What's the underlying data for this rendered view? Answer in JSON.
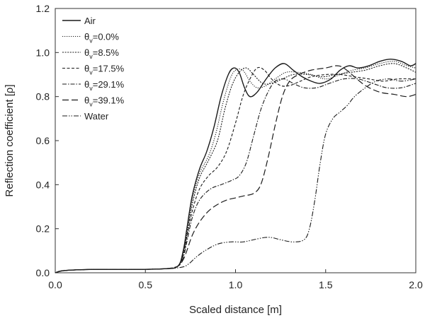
{
  "chart_data": {
    "type": "line",
    "title": "",
    "xlabel": "Scaled distance [m]",
    "ylabel": "Reflection coefficient [ρ]",
    "xlim": [
      0.0,
      2.0
    ],
    "ylim": [
      0.0,
      1.2
    ],
    "xticks": [
      "0.0",
      "0.5",
      "1.0",
      "1.5",
      "2.0"
    ],
    "yticks": [
      "0.0",
      "0.2",
      "0.4",
      "0.6",
      "0.8",
      "1.0",
      "1.2"
    ],
    "grid": false,
    "legend_position": "top-left",
    "series": [
      {
        "name": "Air",
        "legend": {
          "main": "Air",
          "sub": "",
          "rest": ""
        },
        "dash": "",
        "width": 1.4,
        "points": [
          [
            0,
            0.0
          ],
          [
            0.05,
            0.01
          ],
          [
            0.2,
            0.015
          ],
          [
            0.4,
            0.015
          ],
          [
            0.6,
            0.018
          ],
          [
            0.68,
            0.03
          ],
          [
            0.71,
            0.1
          ],
          [
            0.73,
            0.2
          ],
          [
            0.76,
            0.35
          ],
          [
            0.8,
            0.47
          ],
          [
            0.84,
            0.55
          ],
          [
            0.88,
            0.66
          ],
          [
            0.92,
            0.8
          ],
          [
            0.96,
            0.9
          ],
          [
            0.99,
            0.93
          ],
          [
            1.02,
            0.91
          ],
          [
            1.05,
            0.84
          ],
          [
            1.08,
            0.8
          ],
          [
            1.12,
            0.82
          ],
          [
            1.17,
            0.88
          ],
          [
            1.22,
            0.93
          ],
          [
            1.27,
            0.95
          ],
          [
            1.32,
            0.92
          ],
          [
            1.37,
            0.89
          ],
          [
            1.42,
            0.87
          ],
          [
            1.47,
            0.86
          ],
          [
            1.53,
            0.88
          ],
          [
            1.58,
            0.92
          ],
          [
            1.63,
            0.94
          ],
          [
            1.68,
            0.93
          ],
          [
            1.74,
            0.94
          ],
          [
            1.8,
            0.96
          ],
          [
            1.86,
            0.97
          ],
          [
            1.92,
            0.96
          ],
          [
            1.97,
            0.94
          ],
          [
            2.0,
            0.95
          ]
        ]
      },
      {
        "name": "θv=0.0%",
        "legend": {
          "main": "θ",
          "sub": "v",
          "rest": "=0.0%"
        },
        "dash": "1.2,1.8",
        "width": 1.1,
        "points": [
          [
            0,
            0.0
          ],
          [
            0.05,
            0.01
          ],
          [
            0.2,
            0.015
          ],
          [
            0.4,
            0.015
          ],
          [
            0.6,
            0.018
          ],
          [
            0.68,
            0.03
          ],
          [
            0.71,
            0.09
          ],
          [
            0.73,
            0.18
          ],
          [
            0.76,
            0.33
          ],
          [
            0.8,
            0.45
          ],
          [
            0.85,
            0.53
          ],
          [
            0.89,
            0.63
          ],
          [
            0.93,
            0.77
          ],
          [
            0.97,
            0.88
          ],
          [
            1.0,
            0.92
          ],
          [
            1.04,
            0.92
          ],
          [
            1.08,
            0.87
          ],
          [
            1.12,
            0.84
          ],
          [
            1.17,
            0.85
          ],
          [
            1.22,
            0.88
          ],
          [
            1.28,
            0.91
          ],
          [
            1.35,
            0.91
          ],
          [
            1.42,
            0.9
          ],
          [
            1.5,
            0.88
          ],
          [
            1.58,
            0.9
          ],
          [
            1.65,
            0.92
          ],
          [
            1.72,
            0.93
          ],
          [
            1.8,
            0.95
          ],
          [
            1.88,
            0.96
          ],
          [
            1.95,
            0.94
          ],
          [
            2.0,
            0.93
          ]
        ]
      },
      {
        "name": "θv=8.5%",
        "legend": {
          "main": "θ",
          "sub": "v",
          "rest": "=8.5%"
        },
        "dash": "2,1.6",
        "width": 1.1,
        "points": [
          [
            0,
            0.0
          ],
          [
            0.05,
            0.01
          ],
          [
            0.2,
            0.015
          ],
          [
            0.4,
            0.015
          ],
          [
            0.6,
            0.018
          ],
          [
            0.68,
            0.03
          ],
          [
            0.71,
            0.09
          ],
          [
            0.73,
            0.17
          ],
          [
            0.76,
            0.31
          ],
          [
            0.8,
            0.43
          ],
          [
            0.85,
            0.51
          ],
          [
            0.9,
            0.6
          ],
          [
            0.94,
            0.74
          ],
          [
            0.98,
            0.85
          ],
          [
            1.02,
            0.91
          ],
          [
            1.06,
            0.93
          ],
          [
            1.1,
            0.9
          ],
          [
            1.15,
            0.86
          ],
          [
            1.2,
            0.86
          ],
          [
            1.26,
            0.88
          ],
          [
            1.32,
            0.9
          ],
          [
            1.4,
            0.9
          ],
          [
            1.48,
            0.89
          ],
          [
            1.56,
            0.9
          ],
          [
            1.64,
            0.91
          ],
          [
            1.72,
            0.92
          ],
          [
            1.8,
            0.94
          ],
          [
            1.88,
            0.95
          ],
          [
            1.95,
            0.93
          ],
          [
            2.0,
            0.91
          ]
        ]
      },
      {
        "name": "θv=17.5%",
        "legend": {
          "main": "θ",
          "sub": "v",
          "rest": "=17.5%"
        },
        "dash": "4,2.5",
        "width": 1.1,
        "points": [
          [
            0,
            0.0
          ],
          [
            0.05,
            0.01
          ],
          [
            0.2,
            0.015
          ],
          [
            0.4,
            0.015
          ],
          [
            0.6,
            0.018
          ],
          [
            0.68,
            0.03
          ],
          [
            0.71,
            0.08
          ],
          [
            0.73,
            0.16
          ],
          [
            0.76,
            0.28
          ],
          [
            0.8,
            0.38
          ],
          [
            0.85,
            0.44
          ],
          [
            0.9,
            0.48
          ],
          [
            0.95,
            0.55
          ],
          [
            1.0,
            0.68
          ],
          [
            1.04,
            0.8
          ],
          [
            1.08,
            0.88
          ],
          [
            1.12,
            0.93
          ],
          [
            1.16,
            0.92
          ],
          [
            1.2,
            0.88
          ],
          [
            1.25,
            0.85
          ],
          [
            1.3,
            0.85
          ],
          [
            1.36,
            0.87
          ],
          [
            1.42,
            0.89
          ],
          [
            1.5,
            0.9
          ],
          [
            1.58,
            0.9
          ],
          [
            1.66,
            0.89
          ],
          [
            1.74,
            0.88
          ],
          [
            1.82,
            0.87
          ],
          [
            1.9,
            0.88
          ],
          [
            2.0,
            0.88
          ]
        ]
      },
      {
        "name": "θv=29.1%",
        "legend": {
          "main": "θ",
          "sub": "v",
          "rest": "=29.1%"
        },
        "dash": "6,2,1.5,2",
        "width": 1.1,
        "points": [
          [
            0,
            0.0
          ],
          [
            0.05,
            0.01
          ],
          [
            0.2,
            0.015
          ],
          [
            0.4,
            0.015
          ],
          [
            0.6,
            0.018
          ],
          [
            0.68,
            0.03
          ],
          [
            0.71,
            0.07
          ],
          [
            0.73,
            0.14
          ],
          [
            0.76,
            0.25
          ],
          [
            0.8,
            0.33
          ],
          [
            0.86,
            0.38
          ],
          [
            0.92,
            0.4
          ],
          [
            0.98,
            0.42
          ],
          [
            1.02,
            0.44
          ],
          [
            1.06,
            0.5
          ],
          [
            1.1,
            0.62
          ],
          [
            1.14,
            0.74
          ],
          [
            1.18,
            0.82
          ],
          [
            1.22,
            0.87
          ],
          [
            1.27,
            0.88
          ],
          [
            1.32,
            0.86
          ],
          [
            1.38,
            0.84
          ],
          [
            1.45,
            0.84
          ],
          [
            1.52,
            0.86
          ],
          [
            1.6,
            0.88
          ],
          [
            1.68,
            0.88
          ],
          [
            1.76,
            0.86
          ],
          [
            1.84,
            0.84
          ],
          [
            1.92,
            0.84
          ],
          [
            2.0,
            0.86
          ]
        ]
      },
      {
        "name": "θv=39.1%",
        "legend": {
          "main": "θ",
          "sub": "v",
          "rest": "=39.1%"
        },
        "dash": "9,4",
        "width": 1.2,
        "points": [
          [
            0,
            0.0
          ],
          [
            0.05,
            0.01
          ],
          [
            0.2,
            0.015
          ],
          [
            0.4,
            0.015
          ],
          [
            0.6,
            0.018
          ],
          [
            0.68,
            0.03
          ],
          [
            0.71,
            0.06
          ],
          [
            0.73,
            0.1
          ],
          [
            0.76,
            0.17
          ],
          [
            0.8,
            0.23
          ],
          [
            0.85,
            0.28
          ],
          [
            0.9,
            0.31
          ],
          [
            0.95,
            0.33
          ],
          [
            1.0,
            0.34
          ],
          [
            1.05,
            0.35
          ],
          [
            1.1,
            0.36
          ],
          [
            1.14,
            0.4
          ],
          [
            1.18,
            0.52
          ],
          [
            1.22,
            0.67
          ],
          [
            1.26,
            0.8
          ],
          [
            1.3,
            0.87
          ],
          [
            1.35,
            0.9
          ],
          [
            1.42,
            0.92
          ],
          [
            1.5,
            0.93
          ],
          [
            1.56,
            0.94
          ],
          [
            1.6,
            0.93
          ],
          [
            1.66,
            0.89
          ],
          [
            1.72,
            0.85
          ],
          [
            1.8,
            0.82
          ],
          [
            1.88,
            0.81
          ],
          [
            1.95,
            0.8
          ],
          [
            2.0,
            0.81
          ]
        ]
      },
      {
        "name": "Water",
        "legend": {
          "main": "Water",
          "sub": "",
          "rest": ""
        },
        "dash": "7,2,1.5,2,1.5,2",
        "width": 1.1,
        "points": [
          [
            0,
            0.0
          ],
          [
            0.05,
            0.01
          ],
          [
            0.2,
            0.015
          ],
          [
            0.4,
            0.015
          ],
          [
            0.6,
            0.018
          ],
          [
            0.7,
            0.025
          ],
          [
            0.74,
            0.04
          ],
          [
            0.78,
            0.07
          ],
          [
            0.83,
            0.1
          ],
          [
            0.9,
            0.13
          ],
          [
            0.97,
            0.14
          ],
          [
            1.04,
            0.14
          ],
          [
            1.1,
            0.15
          ],
          [
            1.16,
            0.16
          ],
          [
            1.2,
            0.16
          ],
          [
            1.25,
            0.15
          ],
          [
            1.32,
            0.14
          ],
          [
            1.38,
            0.15
          ],
          [
            1.41,
            0.2
          ],
          [
            1.44,
            0.33
          ],
          [
            1.47,
            0.5
          ],
          [
            1.5,
            0.63
          ],
          [
            1.54,
            0.7
          ],
          [
            1.58,
            0.73
          ],
          [
            1.62,
            0.76
          ],
          [
            1.66,
            0.8
          ],
          [
            1.72,
            0.84
          ],
          [
            1.78,
            0.87
          ],
          [
            1.85,
            0.88
          ],
          [
            1.92,
            0.87
          ],
          [
            2.0,
            0.88
          ]
        ]
      }
    ]
  }
}
